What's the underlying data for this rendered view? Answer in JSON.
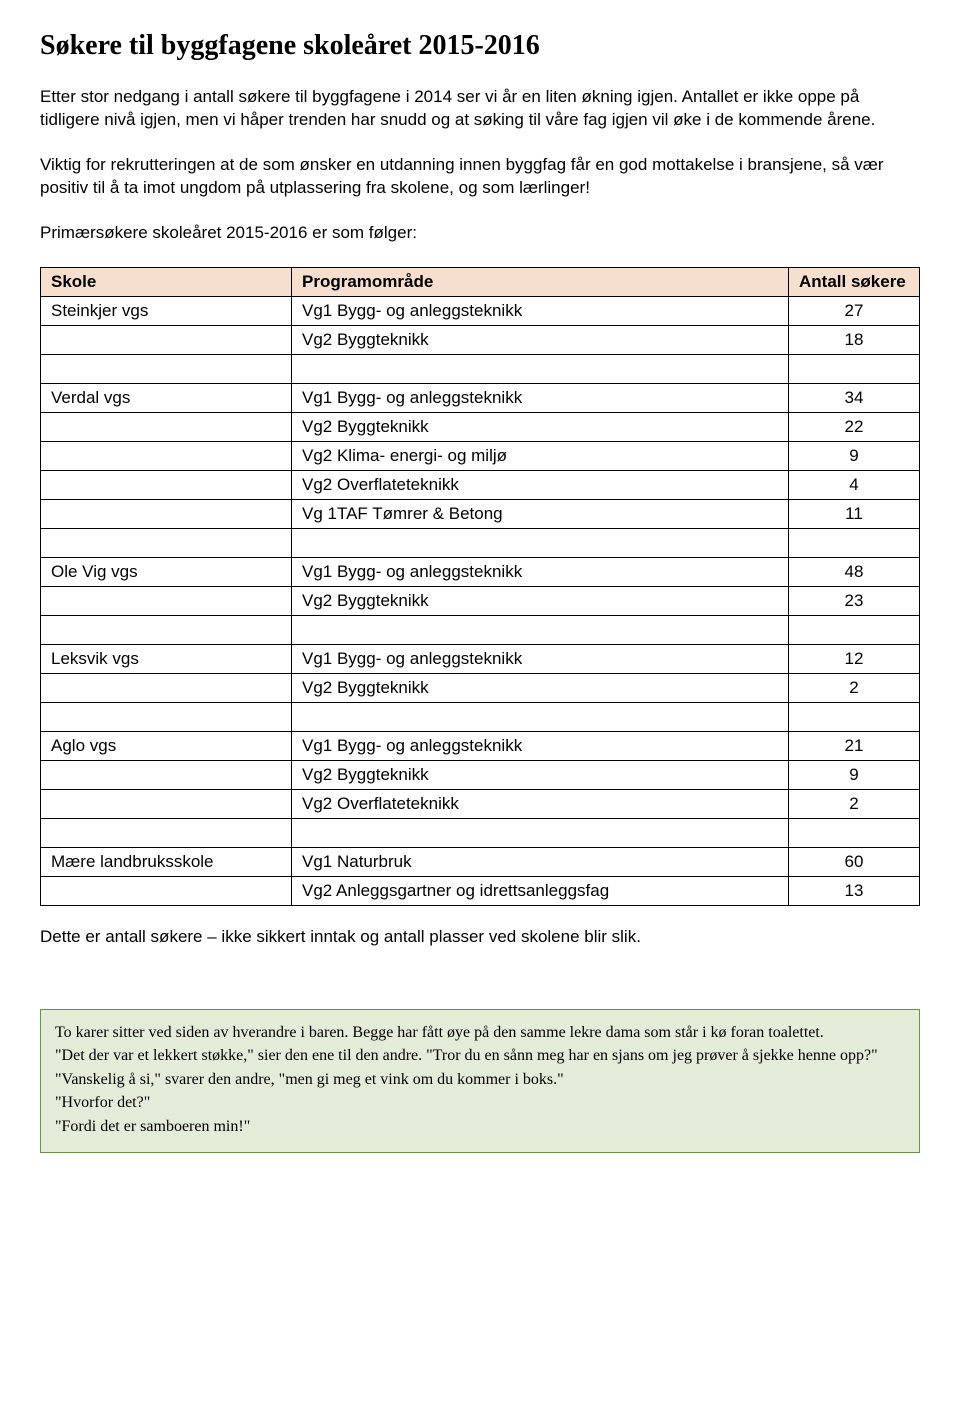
{
  "title": "Søkere til byggfagene skoleåret 2015-2016",
  "para1": "Etter stor nedgang i antall søkere til byggfagene i 2014 ser vi år en liten økning igjen. Antallet er ikke oppe på tidligere nivå igjen, men vi håper trenden har snudd og at søking til våre fag igjen vil øke i de kommende årene.",
  "para2": "Viktig for rekrutteringen at de som ønsker en utdanning innen byggfag får en god mottakelse i bransjene, så vær positiv til å ta imot ungdom på utplassering fra skolene, og som lærlinger!",
  "para3": "Primærsøkere skoleåret 2015-2016 er som følger:",
  "table": {
    "headers": [
      "Skole",
      "Programområde",
      "Antall søkere"
    ],
    "groups": [
      {
        "school": "Steinkjer vgs",
        "rows": [
          {
            "prog": "Vg1 Bygg- og anleggsteknikk",
            "n": "27"
          },
          {
            "prog": "Vg2 Byggteknikk",
            "n": "18"
          }
        ]
      },
      {
        "school": "Verdal vgs",
        "rows": [
          {
            "prog": "Vg1 Bygg- og anleggsteknikk",
            "n": "34"
          },
          {
            "prog": "Vg2 Byggteknikk",
            "n": "22"
          },
          {
            "prog": "Vg2 Klima- energi- og miljø",
            "n": "9"
          },
          {
            "prog": "Vg2 Overflateteknikk",
            "n": "4"
          },
          {
            "prog": "Vg 1TAF Tømrer & Betong",
            "n": "11"
          }
        ]
      },
      {
        "school": "Ole Vig vgs",
        "rows": [
          {
            "prog": "Vg1 Bygg- og anleggsteknikk",
            "n": "48"
          },
          {
            "prog": "Vg2 Byggteknikk",
            "n": "23"
          }
        ]
      },
      {
        "school": "Leksvik vgs",
        "rows": [
          {
            "prog": "Vg1 Bygg- og anleggsteknikk",
            "n": "12"
          },
          {
            "prog": "Vg2 Byggteknikk",
            "n": "2"
          }
        ]
      },
      {
        "school": "Aglo vgs",
        "rows": [
          {
            "prog": "Vg1 Bygg- og anleggsteknikk",
            "n": "21"
          },
          {
            "prog": "Vg2 Byggteknikk",
            "n": "9"
          },
          {
            "prog": "Vg2 Overflateteknikk",
            "n": "2"
          }
        ]
      },
      {
        "school": "Mære landbruksskole",
        "rows": [
          {
            "prog": "Vg1 Naturbruk",
            "n": "60"
          },
          {
            "prog": "Vg2 Anleggsgartner og idrettsanleggsfag",
            "n": "13"
          }
        ]
      }
    ]
  },
  "footnote": "Dette er antall søkere – ikke sikkert inntak og antall plasser ved skolene blir slik.",
  "joke": {
    "l1": "To karer sitter ved siden av hverandre i baren. Begge har fått øye på den samme lekre dama som står i kø foran toalettet.",
    "l2": "\"Det der var et lekkert støkke,\" sier den ene til den andre. \"Tror du en sånn meg har en sjans om jeg prøver å sjekke henne opp?\"",
    "l3": "\"Vanskelig å si,\" svarer den andre, \"men gi meg et vink om du kommer i boks.\"",
    "l4": "\"Hvorfor det?\"",
    "l5": "\"Fordi det er samboeren min!\""
  }
}
